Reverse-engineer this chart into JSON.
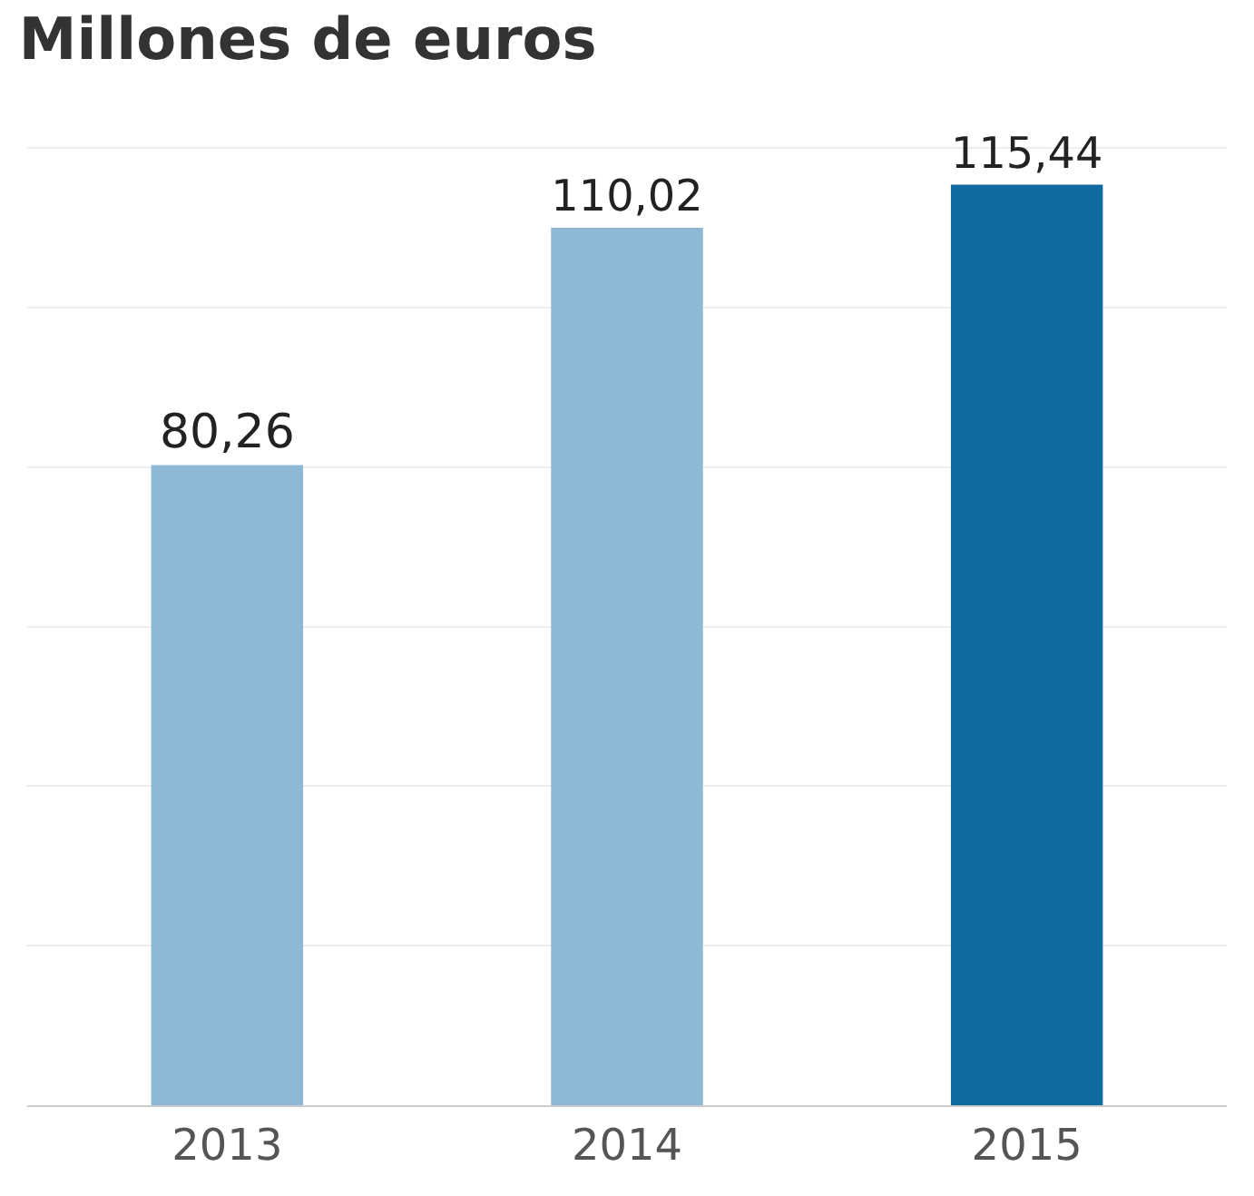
{
  "chart_data": {
    "type": "bar",
    "title": "Millones de euros",
    "categories": [
      "2013",
      "2014",
      "2015"
    ],
    "values": [
      80.26,
      110.02,
      115.44
    ],
    "value_labels": [
      "80,26",
      "110,02",
      "115,44"
    ],
    "colors": [
      "#8fb8d6",
      "#8fb8d6",
      "#0f6aa0"
    ],
    "grid": "y",
    "tick_labels": "x"
  }
}
